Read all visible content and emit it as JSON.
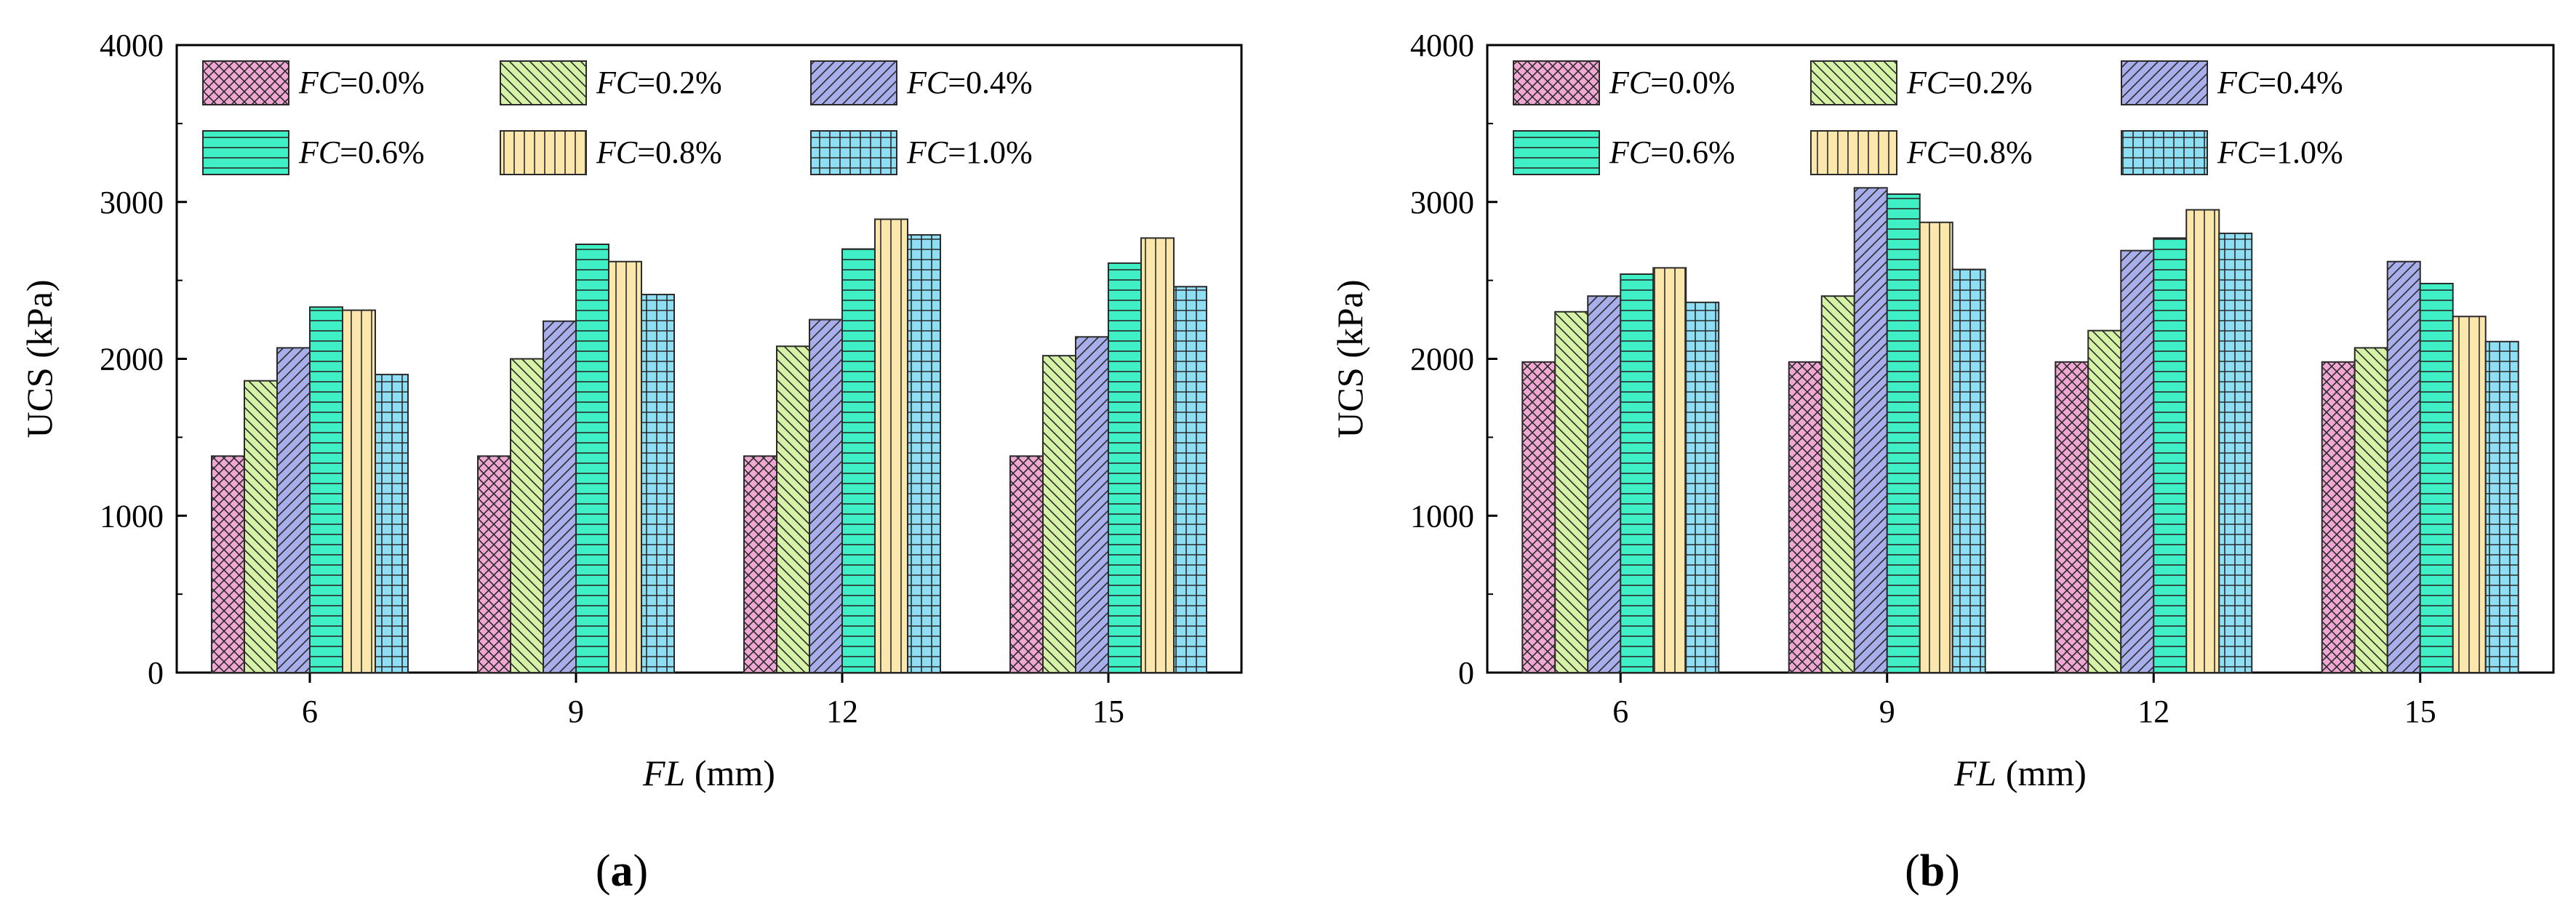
{
  "figure": {
    "panel_labels": [
      {
        "open": "(",
        "letter": "a",
        "close": ")"
      },
      {
        "open": "(",
        "letter": "b",
        "close": ")"
      }
    ]
  },
  "series_style": [
    {
      "color": "#f1a7d3",
      "pattern": "crosshatch"
    },
    {
      "color": "#d6f2a6",
      "pattern": "back-diagonal"
    },
    {
      "color": "#a8aeea",
      "pattern": "forward-diagonal"
    },
    {
      "color": "#3ff0c6",
      "pattern": "horizontal"
    },
    {
      "color": "#fbe6ac",
      "pattern": "vertical"
    },
    {
      "color": "#8fdff4",
      "pattern": "grid"
    }
  ],
  "chart_data": [
    {
      "type": "bar",
      "panel": "a",
      "categories": [
        "6",
        "9",
        "12",
        "15"
      ],
      "xlabel_italic": "FL",
      "xlabel_rest": " (mm)",
      "ylabel": "UCS (kPa)",
      "ylim": [
        0,
        4000
      ],
      "yticks": [
        "0",
        "1000",
        "2000",
        "3000",
        "4000"
      ],
      "legend_position": "top-left",
      "series": [
        {
          "name_italic": "FC",
          "name_rest": "=0.0%",
          "values": [
            1380,
            1380,
            1380,
            1380
          ]
        },
        {
          "name_italic": "FC",
          "name_rest": "=0.2%",
          "values": [
            1860,
            2000,
            2080,
            2020
          ]
        },
        {
          "name_italic": "FC",
          "name_rest": "=0.4%",
          "values": [
            2070,
            2240,
            2250,
            2140
          ]
        },
        {
          "name_italic": "FC",
          "name_rest": "=0.6%",
          "values": [
            2330,
            2730,
            2700,
            2610
          ]
        },
        {
          "name_italic": "FC",
          "name_rest": "=0.8%",
          "values": [
            2310,
            2620,
            2890,
            2770
          ]
        },
        {
          "name_italic": "FC",
          "name_rest": "=1.0%",
          "values": [
            1900,
            2410,
            2790,
            2460
          ]
        }
      ]
    },
    {
      "type": "bar",
      "panel": "b",
      "categories": [
        "6",
        "9",
        "12",
        "15"
      ],
      "xlabel_italic": "FL",
      "xlabel_rest": " (mm)",
      "ylabel": "UCS (kPa)",
      "ylim": [
        0,
        4000
      ],
      "yticks": [
        "0",
        "1000",
        "2000",
        "3000",
        "4000"
      ],
      "legend_position": "top-left",
      "series": [
        {
          "name_italic": "FC",
          "name_rest": "=0.0%",
          "values": [
            1980,
            1980,
            1980,
            1980
          ]
        },
        {
          "name_italic": "FC",
          "name_rest": "=0.2%",
          "values": [
            2300,
            2400,
            2180,
            2070
          ]
        },
        {
          "name_italic": "FC",
          "name_rest": "=0.4%",
          "values": [
            2400,
            3090,
            2690,
            2620
          ]
        },
        {
          "name_italic": "FC",
          "name_rest": "=0.6%",
          "values": [
            2540,
            3050,
            2770,
            2480
          ]
        },
        {
          "name_italic": "FC",
          "name_rest": "=0.8%",
          "values": [
            2580,
            2870,
            2950,
            2270
          ]
        },
        {
          "name_italic": "FC",
          "name_rest": "=1.0%",
          "values": [
            2360,
            2570,
            2800,
            2110
          ]
        }
      ]
    }
  ]
}
